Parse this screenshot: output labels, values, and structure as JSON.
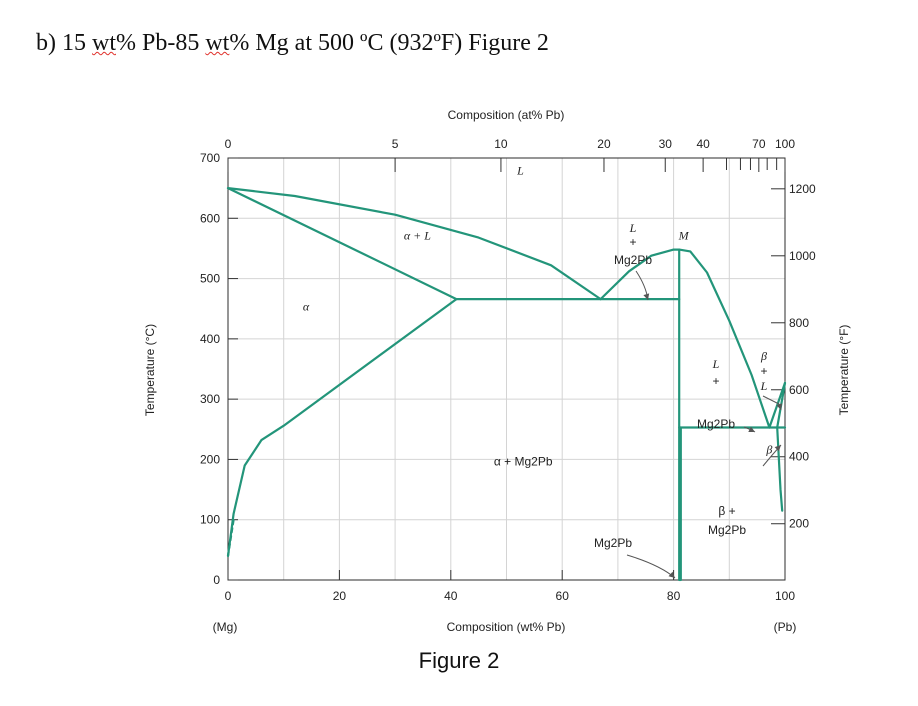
{
  "heading": {
    "prefix": "b) 15 ",
    "w1": "wt",
    "mid1": "% Pb-85 ",
    "w2": "wt",
    "suffix": "% Mg at 500 ºC (932ºF) Figure 2"
  },
  "chart_data": {
    "type": "line",
    "title": "Figure 2",
    "xlabel": "Composition (wt% Pb)",
    "ylabel": "Temperature (°C)",
    "y2label": "Temperature (°F)",
    "x2label": "Composition (at% Pb)",
    "xlim": [
      0,
      100
    ],
    "ylim": [
      0,
      700
    ],
    "xticks": [
      0,
      20,
      40,
      60,
      80,
      100
    ],
    "xtick_labels": [
      "0",
      "20",
      "40",
      "60",
      "80",
      "100"
    ],
    "yticks": [
      0,
      100,
      200,
      300,
      400,
      500,
      600,
      700
    ],
    "ytick_labels": [
      "0",
      "100",
      "200",
      "300",
      "400",
      "500",
      "600",
      "700"
    ],
    "y2ticks_F": [
      200,
      400,
      600,
      800,
      1000,
      1200
    ],
    "y2tick_labels": [
      "200",
      "400",
      "600",
      "800",
      "1000",
      "1200"
    ],
    "at_pct_ticks": [
      {
        "label": "0",
        "wt": 0
      },
      {
        "label": "5",
        "wt": 30
      },
      {
        "label": "10",
        "wt": 49
      },
      {
        "label": "20",
        "wt": 67.5
      },
      {
        "label": "30",
        "wt": 78.5
      },
      {
        "label": "40",
        "wt": 85.3
      },
      {
        "label": "70",
        "wt": 95.3
      },
      {
        "label": "100",
        "wt": 100
      }
    ],
    "at_minor_ticks_wt": [
      89.5,
      92,
      93.8,
      96.8,
      98.5
    ],
    "left_label": "(Mg)",
    "right_label": "(Pb)",
    "series": [
      {
        "name": "liquidus-alpha",
        "points": [
          [
            0,
            650
          ],
          [
            12,
            637
          ],
          [
            30,
            606
          ],
          [
            45,
            568
          ],
          [
            58,
            522
          ],
          [
            66.9,
            466
          ]
        ]
      },
      {
        "name": "solidus-alpha",
        "points": [
          [
            0,
            650
          ],
          [
            41,
            466
          ]
        ]
      },
      {
        "name": "solvus-alpha",
        "points": [
          [
            0,
            40
          ],
          [
            1,
            110
          ],
          [
            3,
            190
          ],
          [
            6,
            232
          ],
          [
            10,
            256
          ],
          [
            41,
            466
          ]
        ]
      },
      {
        "name": "solvus-alpha-dashed",
        "points": [
          [
            0,
            40
          ],
          [
            1,
            100
          ]
        ],
        "dashed": true
      },
      {
        "name": "eutectic-1",
        "points": [
          [
            41,
            466
          ],
          [
            81,
            466
          ]
        ]
      },
      {
        "name": "liquidus-mg2pb-left",
        "points": [
          [
            66.9,
            466
          ],
          [
            72,
            512
          ],
          [
            76,
            538
          ],
          [
            80,
            548
          ],
          [
            81,
            548
          ]
        ]
      },
      {
        "name": "mg2pb-left",
        "points": [
          [
            81,
            548
          ],
          [
            81,
            0
          ]
        ]
      },
      {
        "name": "mg2pb-right",
        "points": [
          [
            81.3,
            253
          ],
          [
            81.3,
            0
          ]
        ]
      },
      {
        "name": "liquidus-mg2pb-right",
        "points": [
          [
            81,
            548
          ],
          [
            83,
            545
          ],
          [
            86,
            510
          ],
          [
            90,
            430
          ],
          [
            94,
            340
          ],
          [
            97.2,
            253
          ]
        ]
      },
      {
        "name": "eutectic-2",
        "points": [
          [
            81,
            253
          ],
          [
            100,
            253
          ]
        ]
      },
      {
        "name": "liquidus-beta",
        "points": [
          [
            97.2,
            253
          ],
          [
            100,
            327
          ]
        ]
      },
      {
        "name": "solidus-beta",
        "points": [
          [
            100,
            327
          ],
          [
            98.6,
            253
          ]
        ]
      },
      {
        "name": "solvus-beta",
        "points": [
          [
            98.6,
            253
          ],
          [
            99.2,
            150
          ],
          [
            99.5,
            115
          ]
        ]
      }
    ],
    "annotations": [
      {
        "text": "L",
        "x": 52.5,
        "y": 673,
        "italic": true
      },
      {
        "text": "α + L",
        "x": 34,
        "y": 565,
        "italic": true
      },
      {
        "text": "α",
        "x": 14,
        "y": 447,
        "italic": true
      },
      {
        "text": "α + Mg2Pb",
        "x": 53,
        "y": 190,
        "italic": false
      },
      {
        "text": "M",
        "x": 81.8,
        "y": 565,
        "italic": true
      },
      {
        "text": "β",
        "x": 97.2,
        "y": 210,
        "italic": true
      }
    ],
    "label_L_Mg2Pb_1": {
      "l1": "L",
      "l2": "+",
      "l3": "Mg2Pb"
    },
    "label_L_Mg2Pb_2": {
      "l1": "L",
      "l2": "+",
      "l3": "Mg2Pb"
    },
    "label_beta_L": {
      "l1": "β",
      "l2": "+",
      "l3": "L"
    },
    "label_beta_Mg2Pb": {
      "l1": "β +",
      "l2": "Mg2Pb"
    },
    "label_Mg2Pb": "Mg2Pb"
  },
  "caption": "Figure 2"
}
